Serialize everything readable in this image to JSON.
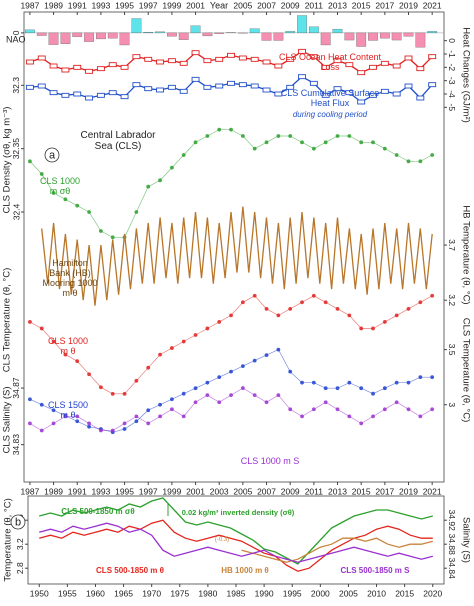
{
  "chart_data": [
    {
      "type": "bar",
      "ylabel": "NAO",
      "xlabel": "Year",
      "x": [
        1987,
        1988,
        1989,
        1990,
        1991,
        1992,
        1993,
        1994,
        1995,
        1996,
        1997,
        1998,
        1999,
        2000,
        2001,
        2002,
        2003,
        2004,
        2005,
        2006,
        2007,
        2008,
        2009,
        2010,
        2011,
        2012,
        2013,
        2014,
        2015,
        2016,
        2017,
        2018,
        2019,
        2020,
        2021
      ],
      "values": [
        -0.8,
        0.7,
        3.1,
        2.9,
        1.0,
        2.3,
        1.6,
        1.4,
        3.2,
        -3.8,
        -0.2,
        -0.3,
        0.9,
        1.8,
        -1.9,
        0.8,
        0.2,
        -0.1,
        0.1,
        -1.1,
        2.0,
        2.0,
        -0.4,
        -4.6,
        -1.6,
        3.2,
        -1.0,
        1.9,
        3.6,
        2.0,
        1.4,
        1.9,
        0.9,
        3.8,
        -0.4
      ],
      "colors": {
        "positive": "#f48fb1",
        "negative": "#5fe3ea"
      },
      "ylim": [
        4,
        -5
      ],
      "yticks": [
        0
      ],
      "xlim": [
        1986.5,
        2022
      ],
      "xticks": [
        1987,
        1989,
        1991,
        1993,
        1995,
        1997,
        1999,
        2001,
        2005,
        2007,
        2009,
        2011,
        2013,
        2015,
        2017,
        2019,
        2021
      ]
    },
    {
      "type": "line",
      "marker": "square",
      "y2label": "Heat Changes (GJ/m²)",
      "annotation": "during cooling period",
      "x": [
        1987,
        1988,
        1989,
        1990,
        1991,
        1992,
        1993,
        1994,
        1995,
        1996,
        1997,
        1998,
        1999,
        2000,
        2001,
        2002,
        2003,
        2004,
        2005,
        2006,
        2007,
        2008,
        2009,
        2010,
        2011,
        2012,
        2013,
        2014,
        2015,
        2016,
        2017,
        2018,
        2019,
        2020,
        2021
      ],
      "xlim": [
        1986.5,
        2022
      ],
      "y2lim": [
        -5.5,
        0.5
      ],
      "y2ticks": [
        0,
        -1,
        -2,
        -3,
        -4,
        -5
      ],
      "series": [
        {
          "name": "CLS Ocean Heat Content Loss",
          "color": "#e02020",
          "axis": "y2",
          "values": [
            -1.6,
            -1.3,
            -1.9,
            -2.2,
            -2.0,
            -2.3,
            -2.1,
            -1.8,
            -2.0,
            -1.2,
            -1.4,
            -1.6,
            -1.5,
            -1.7,
            -0.9,
            -1.5,
            -1.4,
            -1.1,
            -1.3,
            -1.4,
            -1.6,
            -1.9,
            -1.4,
            -0.8,
            -1.2,
            -2.0,
            -1.5,
            -1.8,
            -2.4,
            -2.0,
            -1.7,
            -1.9,
            -1.3,
            -2.1,
            -1.2
          ]
        },
        {
          "name": "CLS Cumulative Surface Heat Flux",
          "color": "#2050c8",
          "axis": "y2",
          "values": [
            -3.5,
            -3.4,
            -3.9,
            -4.1,
            -4.0,
            -4.3,
            -4.1,
            -3.9,
            -4.2,
            -3.3,
            -3.6,
            -3.7,
            -3.5,
            -3.8,
            -2.9,
            -3.5,
            -3.4,
            -3.2,
            -3.3,
            -3.4,
            -3.7,
            -4.0,
            -3.5,
            -2.7,
            -3.2,
            -4.1,
            -3.6,
            -3.9,
            -4.6,
            -4.1,
            -3.8,
            -4.0,
            -3.4,
            -4.3,
            -3.3
          ]
        }
      ]
    },
    {
      "type": "scatter",
      "panel": "a",
      "ylabel": "CLS Density (σθ, kg m⁻³)",
      "annotation": "Central Labrador Sea (CLS)",
      "x": [
        1987,
        1988,
        1989,
        1990,
        1991,
        1992,
        1993,
        1994,
        1995,
        1996,
        1997,
        1998,
        1999,
        2000,
        2001,
        2002,
        2003,
        2004,
        2005,
        2006,
        2007,
        2008,
        2009,
        2010,
        2011,
        2012,
        2013,
        2014,
        2015,
        2016,
        2017,
        2018,
        2019,
        2020,
        2021
      ],
      "xlim": [
        1986.5,
        2022
      ],
      "ylim": [
        32.43,
        32.28
      ],
      "yticks": [
        32.3,
        32.35,
        32.4
      ],
      "series": [
        {
          "name": "CLS 1000 m σθ",
          "color": "#2ca02c",
          "values": [
            32.36,
            32.37,
            32.385,
            32.39,
            32.395,
            32.4,
            32.415,
            32.42,
            32.42,
            32.4,
            32.38,
            32.375,
            32.365,
            32.355,
            32.345,
            32.34,
            32.335,
            32.335,
            32.34,
            32.35,
            32.345,
            32.34,
            32.34,
            32.345,
            32.35,
            32.345,
            32.34,
            32.34,
            32.345,
            32.345,
            32.35,
            32.355,
            32.36,
            32.36,
            32.355
          ]
        }
      ]
    },
    {
      "type": "line",
      "y2label": "HB Temperature (θ, °C)",
      "x": [
        1988,
        1988.5,
        1989,
        1989.5,
        1990,
        1990.5,
        1991,
        1991.5,
        1992,
        1992.5,
        1993,
        1993.5,
        1994,
        1994.5,
        1995,
        1995.5,
        1996,
        1996.5,
        1997,
        1997.5,
        1998,
        1998.5,
        1999,
        1999.5,
        2000,
        2000.5,
        2001,
        2001.5,
        2002,
        2002.5,
        2003,
        2003.5,
        2004,
        2004.5,
        2005,
        2005.5,
        2006,
        2006.5,
        2007,
        2007.5,
        2008,
        2008.5,
        2009,
        2009.5,
        2010,
        2010.5,
        2011,
        2011.5,
        2012,
        2012.5,
        2013,
        2013.5,
        2014,
        2014.5,
        2015,
        2015.5,
        2016,
        2016.5,
        2017,
        2017.5,
        2018,
        2018.5,
        2019,
        2019.5,
        2020,
        2020.5,
        2021
      ],
      "xlim": [
        1986.5,
        2022
      ],
      "y2lim": [
        2.93,
        4.29
      ],
      "y2ticks": [
        3.2,
        3.7
      ],
      "series": [
        {
          "name": "Hamilton Bank (HB) Mooring 1000 m θ",
          "color": "#b8762a",
          "axis": "y2",
          "values": [
            3.85,
            3.35,
            3.9,
            3.3,
            3.8,
            3.25,
            3.75,
            3.2,
            3.7,
            3.15,
            3.7,
            3.2,
            3.75,
            3.25,
            3.8,
            3.3,
            3.85,
            3.35,
            3.9,
            3.35,
            3.95,
            3.4,
            3.9,
            3.35,
            3.95,
            3.4,
            4.0,
            3.4,
            3.95,
            3.35,
            3.9,
            3.4,
            4.0,
            3.45,
            4.05,
            3.45,
            4.0,
            3.4,
            3.95,
            3.35,
            3.9,
            3.3,
            3.95,
            3.35,
            4.0,
            3.4,
            3.95,
            3.35,
            3.9,
            3.3,
            3.95,
            3.35,
            3.85,
            3.3,
            3.8,
            3.25,
            3.85,
            3.3,
            3.9,
            3.35,
            3.85,
            3.3,
            3.9,
            3.35,
            3.85,
            3.3,
            3.8
          ]
        }
      ]
    },
    {
      "type": "scatter",
      "ylabel": "CLS Temperature (θ, °C)",
      "x": [
        1987,
        1988,
        1989,
        1990,
        1991,
        1992,
        1993,
        1994,
        1995,
        1996,
        1997,
        1998,
        1999,
        2000,
        2001,
        2002,
        2003,
        2004,
        2005,
        2006,
        2007,
        2008,
        2009,
        2010,
        2011,
        2012,
        2013,
        2014,
        2015,
        2016,
        2017,
        2018,
        2019,
        2020,
        2021
      ],
      "xlim": [
        1986.5,
        2022
      ],
      "ylim": [
        2.6,
        3.9
      ],
      "series": [
        {
          "name": "CLS 1000 m θ",
          "color": "#e0201e",
          "values": [
            3.35,
            3.3,
            3.2,
            3.1,
            3.05,
            2.95,
            2.85,
            2.8,
            2.8,
            2.9,
            3.0,
            3.1,
            3.15,
            3.2,
            3.25,
            3.3,
            3.35,
            3.4,
            3.5,
            3.55,
            3.45,
            3.4,
            3.45,
            3.5,
            3.55,
            3.5,
            3.45,
            3.4,
            3.3,
            3.3,
            3.35,
            3.4,
            3.45,
            3.5,
            3.55
          ]
        }
      ]
    },
    {
      "type": "scatter",
      "y2label": "CLS Temperature (θ, °C)",
      "x": [
        1987,
        1988,
        1989,
        1990,
        1991,
        1992,
        1993,
        1994,
        1995,
        1996,
        1997,
        1998,
        1999,
        2000,
        2001,
        2002,
        2003,
        2004,
        2005,
        2006,
        2007,
        2008,
        2009,
        2010,
        2011,
        2012,
        2013,
        2014,
        2015,
        2016,
        2017,
        2018,
        2019,
        2020,
        2021
      ],
      "xlim": [
        1986.5,
        2022
      ],
      "y2lim": [
        2.68,
        3.95
      ],
      "y2ticks": [
        3,
        3.5
      ],
      "series": [
        {
          "name": "CLS 1500 m θ",
          "color": "#1f3fd0",
          "axis": "y2",
          "values": [
            3.05,
            3.0,
            2.95,
            2.9,
            2.85,
            2.8,
            2.78,
            2.75,
            2.78,
            2.85,
            2.95,
            3.0,
            3.05,
            3.1,
            3.15,
            3.2,
            3.25,
            3.3,
            3.35,
            3.4,
            3.45,
            3.5,
            3.3,
            3.2,
            3.2,
            3.15,
            3.15,
            3.2,
            3.15,
            3.1,
            3.15,
            3.2,
            3.2,
            3.25,
            3.25
          ]
        }
      ]
    },
    {
      "type": "scatter",
      "ylabel": "CLS Salinity (S)",
      "x": [
        1987,
        1988,
        1989,
        1990,
        1991,
        1992,
        1993,
        1994,
        1995,
        1996,
        1997,
        1998,
        1999,
        2000,
        2001,
        2002,
        2003,
        2004,
        2005,
        2006,
        2007,
        2008,
        2009,
        2010,
        2011,
        2012,
        2013,
        2014,
        2015,
        2016,
        2017,
        2018,
        2019,
        2020,
        2021
      ],
      "xlim": [
        1986.5,
        2022
      ],
      "xticks": [
        1987,
        1989,
        1991,
        1993,
        1995,
        1997,
        1999,
        2001,
        2003,
        2005,
        2007,
        2009,
        2011,
        2013,
        2015,
        2017,
        2019,
        2021
      ],
      "ylim": [
        34.805,
        34.904
      ],
      "yticks": [
        34.83,
        34.87
      ],
      "series": [
        {
          "name": "CLS 1000 m S",
          "color": "#9b30d0",
          "values": [
            34.845,
            34.84,
            34.845,
            34.85,
            34.85,
            34.845,
            34.84,
            34.84,
            34.845,
            34.85,
            34.845,
            34.85,
            34.855,
            34.85,
            34.86,
            34.865,
            34.86,
            34.865,
            34.87,
            34.865,
            34.86,
            34.865,
            34.855,
            34.85,
            34.855,
            34.86,
            34.855,
            34.85,
            34.845,
            34.85,
            34.855,
            34.86,
            34.855,
            34.85,
            34.855
          ]
        }
      ]
    },
    {
      "type": "line",
      "panel": "b",
      "ylabel": "Temperature (θ, °C)",
      "y2label": "Salinity (S)",
      "annotations": [
        "0.02 kg/m³ inverted density (σθ)",
        "(-0.3)"
      ],
      "x": [
        1950,
        1952,
        1954,
        1956,
        1958,
        1960,
        1962,
        1964,
        1966,
        1968,
        1970,
        1972,
        1974,
        1976,
        1978,
        1980,
        1982,
        1984,
        1986,
        1988,
        1990,
        1992,
        1994,
        1996,
        1998,
        2000,
        2002,
        2004,
        2006,
        2008,
        2010,
        2012,
        2014,
        2016,
        2018,
        2020
      ],
      "xlim": [
        1948,
        2022
      ],
      "xticks": [
        1950,
        1955,
        1960,
        1965,
        1970,
        1975,
        1980,
        1985,
        1990,
        1995,
        2000,
        2005,
        2010,
        2015,
        2020
      ],
      "ylim": [
        2.57,
        3.97
      ],
      "yticks": [
        2.8,
        3.2,
        3.6
      ],
      "y2lim": [
        34.817,
        34.957
      ],
      "y2ticks": [
        34.84,
        34.88,
        34.92
      ],
      "y3lim": [
        27.84,
        27.7
      ],
      "series": [
        {
          "name": "CLS 500-1850 m σθ",
          "color": "#2ca02c",
          "axis": "y3",
          "values": [
            27.73,
            27.725,
            27.73,
            27.72,
            27.725,
            27.72,
            27.715,
            27.72,
            27.71,
            27.715,
            27.705,
            27.7,
            27.72,
            27.74,
            27.745,
            27.74,
            27.745,
            27.75,
            27.76,
            27.77,
            27.785,
            27.79,
            27.8,
            27.81,
            27.79,
            27.77,
            27.75,
            27.74,
            27.73,
            27.725,
            27.72,
            27.72,
            27.725,
            27.73,
            27.735,
            27.73
          ]
        },
        {
          "name": "CLS 500-1850 m θ",
          "color": "#e3261e",
          "values": [
            3.3,
            3.35,
            3.3,
            3.4,
            3.35,
            3.4,
            3.45,
            3.4,
            3.5,
            3.45,
            3.55,
            3.6,
            3.4,
            3.3,
            3.25,
            3.3,
            3.35,
            3.3,
            3.25,
            3.15,
            3.05,
            3.0,
            2.85,
            2.75,
            2.8,
            2.95,
            3.1,
            3.2,
            3.3,
            3.35,
            3.45,
            3.5,
            3.45,
            3.35,
            3.3,
            3.3
          ]
        },
        {
          "name": "HB 1000 m θ",
          "color": "#c8843a",
          "x": [
            1986,
            1988,
            1990,
            1992,
            1994,
            1996,
            1998,
            2000,
            2002,
            2004,
            2006,
            2008,
            2010,
            2012,
            2014,
            2016,
            2018,
            2020
          ],
          "values": [
            3.1,
            3.05,
            3.0,
            2.95,
            2.9,
            2.95,
            3.05,
            3.15,
            3.2,
            3.3,
            3.3,
            3.25,
            3.3,
            3.2,
            3.15,
            3.2,
            3.2,
            3.25
          ]
        },
        {
          "name": "CLS 500-1850 m S",
          "color": "#9b30d0",
          "axis": "y2",
          "values": [
            34.9,
            34.905,
            34.9,
            34.91,
            34.905,
            34.91,
            34.915,
            34.91,
            34.9,
            34.905,
            34.895,
            34.87,
            34.86,
            34.865,
            34.87,
            34.875,
            34.87,
            34.865,
            34.86,
            34.865,
            34.87,
            34.86,
            34.855,
            34.85,
            34.855,
            34.86,
            34.865,
            34.87,
            34.875,
            34.87,
            34.865,
            34.86,
            34.865,
            34.86,
            34.855,
            34.86
          ]
        }
      ]
    }
  ]
}
